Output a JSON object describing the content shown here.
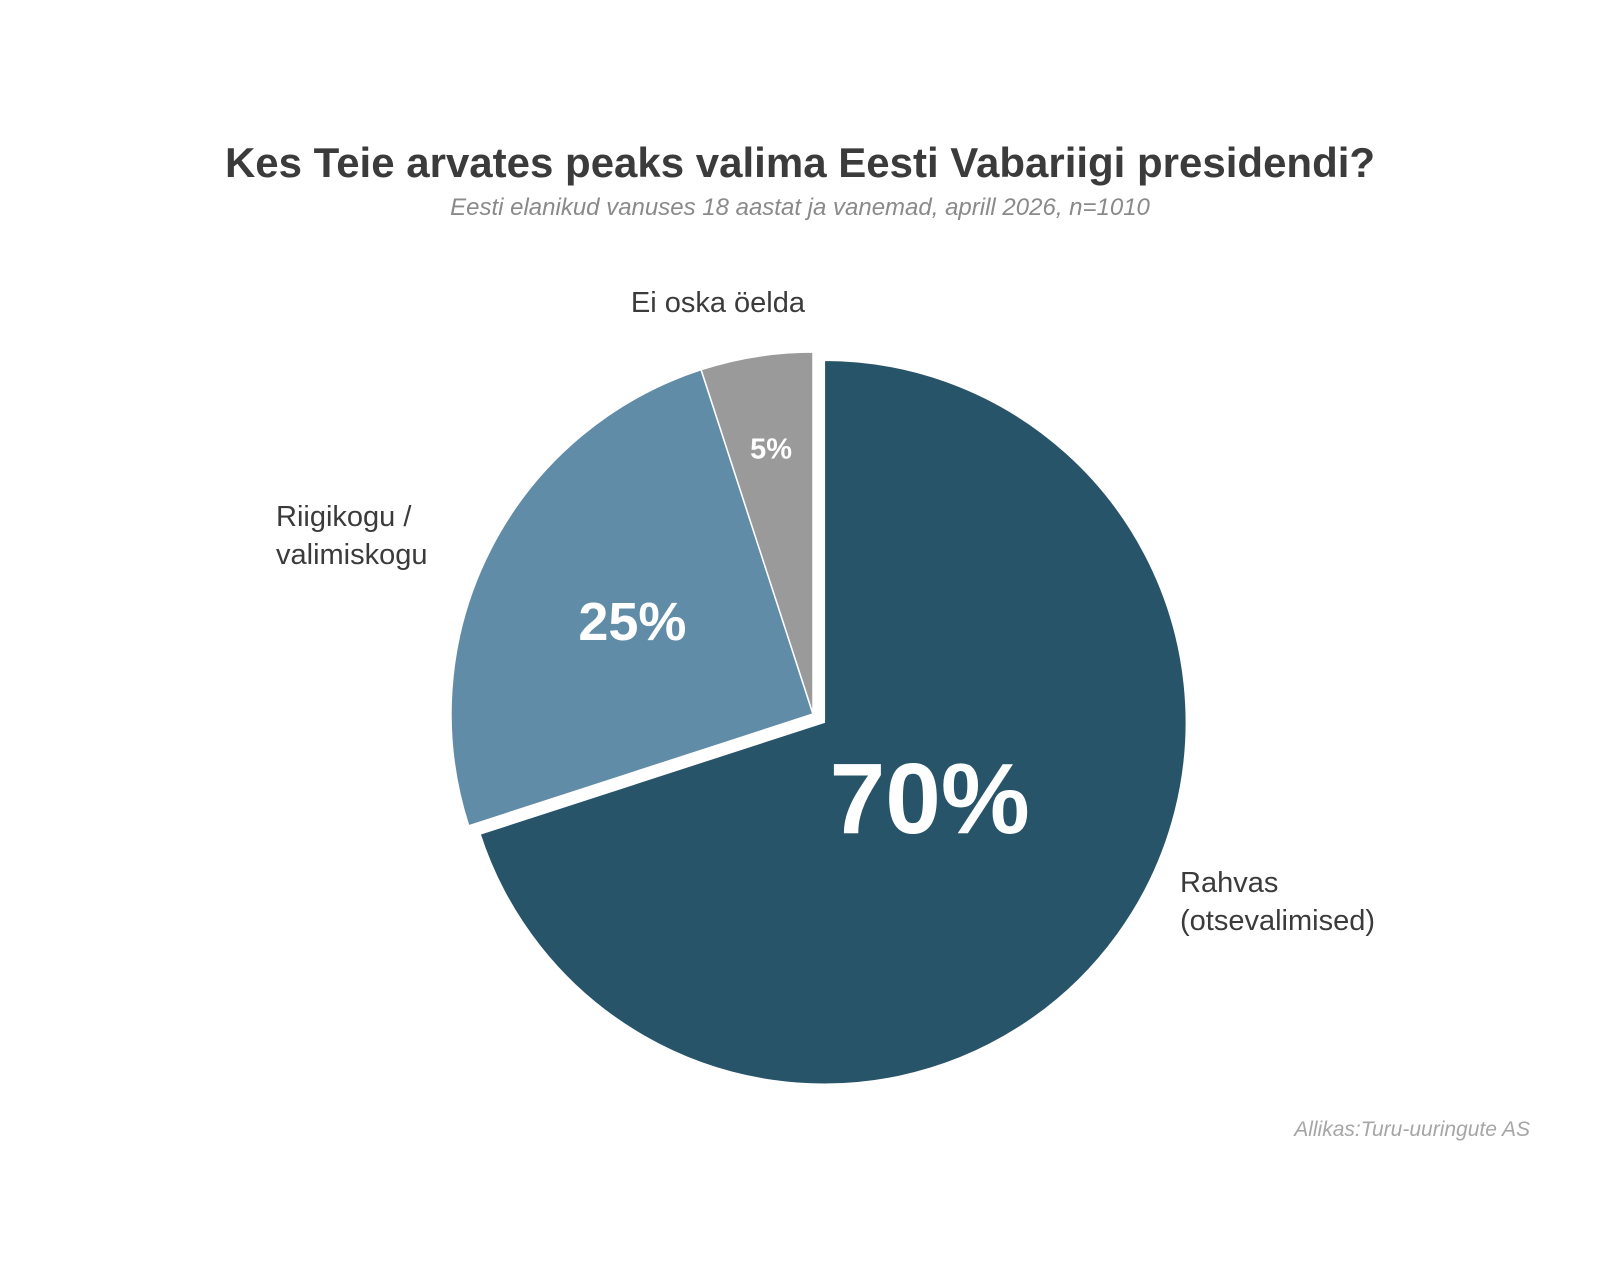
{
  "chart_data": {
    "type": "pie",
    "title": "Kes Teie arvates peaks valima Eesti Vabariigi presidendi?",
    "subtitle": "Eesti elanikud vanuses 18 aastat ja vanemad, aprill 2026, n=1010",
    "source": "Allikas:Turu-uuringute AS",
    "unit": "%",
    "slices": [
      {
        "category": [
          "Rahvas",
          "(otsevalimised)"
        ],
        "value": 70,
        "label": "70%",
        "color": "#285469",
        "label_color": "#ffffff",
        "exploded": true
      },
      {
        "category": [
          "Riigikogu /",
          "valimiskogu"
        ],
        "value": 25,
        "label": "25%",
        "color": "#608ca8",
        "label_color": "#ffffff",
        "exploded": false
      },
      {
        "category": [
          "Ei oska öelda"
        ],
        "value": 5,
        "label": "5%",
        "color": "#9a9a9a",
        "label_color": "#ffffff",
        "exploded": false
      }
    ],
    "start_angle": "12 o'clock",
    "direction": "clockwise",
    "legend": "none"
  }
}
